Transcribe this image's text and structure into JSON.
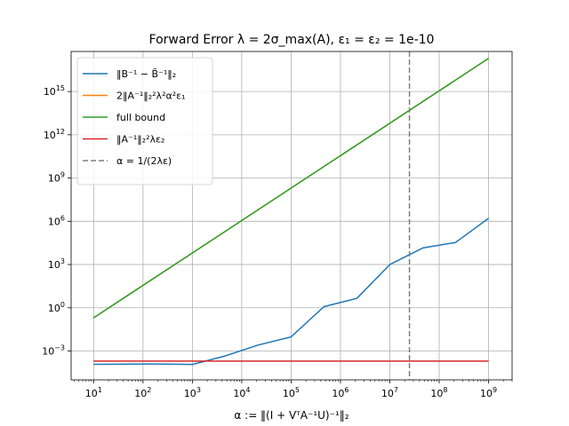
{
  "chart_data": {
    "type": "line",
    "title": "Forward Error λ = 2σ_max(A), ε₁ = ε₂ = 1e-10",
    "xlabel": "α := ‖(I + VᵀA⁻¹U)⁻¹‖₂",
    "ylabel": "",
    "x_scale": "log",
    "y_scale": "log",
    "xlim": [
      3.5,
      3000000000
    ],
    "ylim": [
      1e-05,
      6e+17
    ],
    "grid": true,
    "legend_position": "top-left",
    "x_ticks": [
      {
        "value": 10,
        "exp": "1"
      },
      {
        "value": 100,
        "exp": "2"
      },
      {
        "value": 1000,
        "exp": "3"
      },
      {
        "value": 10000,
        "exp": "4"
      },
      {
        "value": 100000,
        "exp": "5"
      },
      {
        "value": 1000000,
        "exp": "6"
      },
      {
        "value": 10000000,
        "exp": "7"
      },
      {
        "value": 100000000,
        "exp": "8"
      },
      {
        "value": 1000000000,
        "exp": "9"
      }
    ],
    "y_ticks": [
      {
        "value": 0.001,
        "exp": "−3"
      },
      {
        "value": 1,
        "exp": "0"
      },
      {
        "value": 1000,
        "exp": "3"
      },
      {
        "value": 1000000,
        "exp": "6"
      },
      {
        "value": 1000000000,
        "exp": "9"
      },
      {
        "value": 1000000000000,
        "exp": "12"
      },
      {
        "value": 1000000000000000,
        "exp": "15"
      }
    ],
    "tick_base": "10",
    "series": [
      {
        "name": "‖B⁻¹ − B̃⁻¹‖₂",
        "color": "#1f77b4",
        "x": [
          10,
          46,
          215,
          1000,
          4600,
          21500,
          100000,
          464000,
          2150000,
          10000000,
          46400000,
          215000000,
          1000000000
        ],
        "y": [
          0.00012,
          0.000125,
          0.000127,
          0.000118,
          0.00045,
          0.0026,
          0.0095,
          1.2,
          4.5,
          1000,
          14000,
          34000,
          1600000
        ]
      },
      {
        "name": "2‖A⁻¹‖₂²λ²α²ε₁",
        "color": "#ff7f0e",
        "x": [
          10,
          1000000000
        ],
        "y": [
          0.2,
          2e+17
        ]
      },
      {
        "name": "full bound",
        "color": "#2ca02c",
        "x": [
          10,
          1000000000
        ],
        "y": [
          0.2,
          2e+17
        ]
      },
      {
        "name": "‖A⁻¹‖₂²λε₂",
        "color": "#d62728",
        "x": [
          10,
          1000000000
        ],
        "y": [
          0.0002,
          0.0002
        ]
      },
      {
        "name": "α = 1/(2λε)",
        "color": "#7f7f7f",
        "style": "dashed",
        "vline_x": 25000000
      }
    ]
  }
}
